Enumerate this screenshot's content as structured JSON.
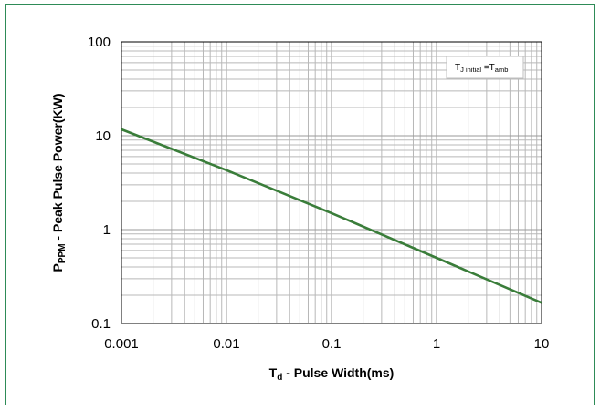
{
  "chart_data": {
    "type": "line",
    "x_scale": "log",
    "y_scale": "log",
    "xlim": [
      0.001,
      10
    ],
    "ylim": [
      0.1,
      100
    ],
    "x_ticks": [
      "0.001",
      "0.01",
      "0.1",
      "1",
      "10"
    ],
    "y_ticks": [
      "100",
      "10",
      "1",
      "0.1"
    ],
    "xlabel": {
      "main": "T",
      "sub": "d",
      "rest": " - Pulse Width(ms)"
    },
    "ylabel": {
      "main": "P",
      "sub": "PPM",
      "rest": " - Peak Pulse Power(KW)"
    },
    "annotation": {
      "main": "T",
      "sub1": "J initial",
      "mid": " =T",
      "sub2": "amb"
    },
    "grid": true,
    "series": [
      {
        "color": "#3a7d3a",
        "x": [
          0.001,
          0.01,
          0.1,
          1,
          10
        ],
        "y": [
          11.7,
          4.3,
          1.5,
          0.5,
          0.166
        ]
      }
    ]
  }
}
